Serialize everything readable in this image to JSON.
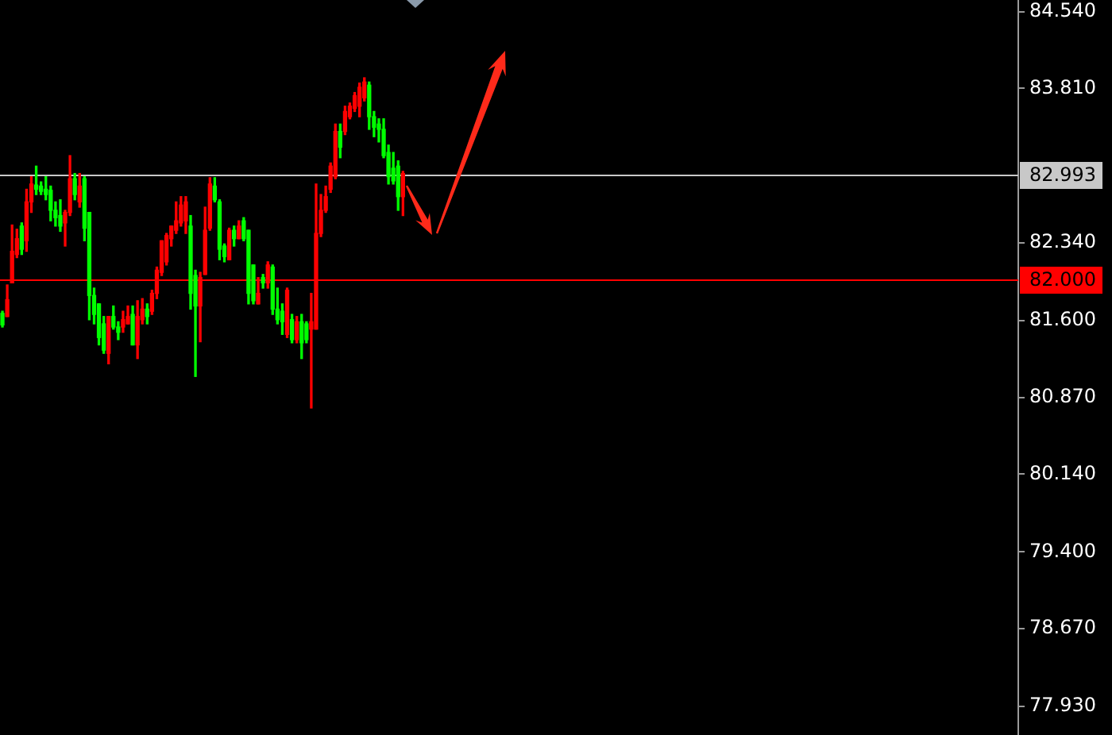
{
  "chart_data": {
    "type": "candlestick",
    "categories": [
      null,
      null,
      null,
      null,
      null,
      null,
      null,
      null,
      null,
      null,
      null,
      null,
      null,
      null,
      null,
      null,
      null,
      null,
      null,
      null,
      null,
      null,
      null,
      null,
      null,
      null,
      null,
      null,
      null,
      null,
      null,
      null,
      null,
      null,
      null,
      null,
      null,
      null,
      null,
      null,
      null,
      null,
      null,
      null,
      null,
      null,
      null,
      null,
      null,
      null,
      null,
      null,
      null,
      null,
      null,
      null,
      null,
      null,
      null,
      null,
      null,
      null,
      null,
      null,
      null,
      null,
      null,
      null,
      null,
      null,
      null,
      null,
      null,
      null,
      null,
      null,
      null,
      null,
      null,
      null,
      null,
      null,
      null,
      null,
      null,
      null,
      null,
      null,
      null,
      null,
      null,
      null,
      null,
      null,
      null,
      null,
      null,
      null,
      null,
      null,
      null,
      null,
      null,
      null,
      null,
      null,
      null,
      null,
      null,
      null,
      null,
      null,
      null,
      null,
      null,
      null,
      null,
      null,
      null,
      null,
      null,
      null,
      null,
      null,
      null,
      null,
      null,
      null,
      null,
      null,
      null,
      null,
      null,
      null,
      null,
      null,
      null,
      null,
      null,
      null,
      null,
      null,
      null,
      null,
      null,
      null,
      null,
      null,
      null,
      null,
      null,
      null,
      null,
      null,
      null,
      null,
      null,
      null,
      null,
      null,
      null,
      null,
      null,
      null,
      null,
      null,
      null,
      null,
      null,
      null,
      null,
      null,
      null,
      null,
      null,
      null,
      null,
      null,
      null,
      null,
      null,
      null,
      null,
      null,
      null,
      null,
      null,
      null,
      null,
      null,
      null,
      null,
      null,
      null,
      null,
      null,
      null,
      null,
      null,
      null,
      null,
      null,
      null,
      null,
      null,
      null,
      null,
      null,
      null,
      null,
      null
    ],
    "ohlc": [
      [
        81.67,
        81.69,
        81.54,
        81.56
      ],
      [
        81.64,
        81.94,
        81.64,
        81.8
      ],
      [
        81.96,
        82.51,
        81.96,
        82.26
      ],
      [
        82.23,
        82.47,
        82.2,
        82.38
      ],
      [
        82.5,
        82.53,
        82.23,
        82.28
      ],
      [
        82.36,
        82.85,
        82.26,
        82.73
      ],
      [
        82.73,
        82.97,
        82.63,
        82.9
      ],
      [
        82.89,
        83.07,
        82.8,
        82.85
      ],
      [
        82.88,
        82.92,
        82.8,
        82.83
      ],
      [
        82.85,
        82.97,
        82.75,
        82.8
      ],
      [
        82.84,
        82.88,
        82.55,
        82.65
      ],
      [
        82.65,
        82.73,
        82.5,
        82.58
      ],
      [
        82.6,
        82.75,
        82.45,
        82.5
      ],
      [
        82.53,
        82.65,
        82.31,
        82.63
      ],
      [
        82.63,
        83.17,
        82.6,
        82.95
      ],
      [
        82.95,
        83,
        82.75,
        82.8
      ],
      [
        82.73,
        83,
        82.68,
        82.88
      ],
      [
        82.95,
        82.97,
        82.36,
        82.48
      ],
      [
        82.63,
        82.63,
        81.61,
        81.84
      ],
      [
        81.84,
        81.91,
        81.57,
        81.66
      ],
      [
        81.76,
        81.76,
        81.37,
        81.44
      ],
      [
        81.57,
        81.64,
        81.29,
        81.32
      ],
      [
        81.29,
        81.64,
        81.19,
        81.64
      ],
      [
        81.64,
        81.74,
        81.52,
        81.54
      ],
      [
        81.54,
        81.59,
        81.42,
        81.49
      ],
      [
        81.54,
        81.69,
        81.49,
        81.61
      ],
      [
        81.57,
        81.74,
        81.57,
        81.64
      ],
      [
        81.66,
        81.74,
        81.37,
        81.37
      ],
      [
        81.37,
        81.79,
        81.24,
        81.64
      ],
      [
        81.61,
        81.81,
        81.57,
        81.71
      ],
      [
        81.71,
        81.76,
        81.57,
        81.64
      ],
      [
        81.69,
        81.89,
        81.66,
        81.86
      ],
      [
        81.86,
        82.11,
        81.81,
        82.08
      ],
      [
        82.06,
        82.36,
        82.03,
        82.36
      ],
      [
        82.16,
        82.43,
        82.13,
        82.41
      ],
      [
        82.38,
        82.5,
        82.31,
        82.5
      ],
      [
        82.46,
        82.73,
        82.43,
        82.55
      ],
      [
        82.53,
        82.78,
        82.5,
        82.7
      ],
      [
        82.55,
        82.78,
        82.43,
        82.73
      ],
      [
        82.5,
        82.6,
        81.71,
        81.86
      ],
      [
        82.03,
        82.08,
        81.07,
        81.74
      ],
      [
        81.74,
        82.06,
        81.4,
        82.01
      ],
      [
        82.04,
        82.68,
        82.04,
        82.46
      ],
      [
        82.48,
        82.96,
        82.46,
        82.9
      ],
      [
        82.88,
        82.96,
        82.73,
        82.75
      ],
      [
        82.73,
        82.75,
        82.18,
        82.28
      ],
      [
        82.31,
        82.33,
        82.16,
        82.21
      ],
      [
        82.18,
        82.48,
        82.18,
        82.46
      ],
      [
        82.46,
        82.5,
        82.31,
        82.38
      ],
      [
        82.38,
        82.55,
        82.38,
        82.5
      ],
      [
        82.55,
        82.58,
        82.36,
        82.38
      ],
      [
        82.46,
        82.46,
        81.76,
        81.86
      ],
      [
        82.13,
        82.13,
        81.76,
        81.79
      ],
      [
        81.76,
        82.01,
        81.76,
        81.86
      ],
      [
        82.01,
        82.04,
        81.91,
        81.96
      ],
      [
        81.96,
        82.16,
        81.91,
        82.13
      ],
      [
        82.11,
        82.13,
        81.66,
        81.71
      ],
      [
        81.71,
        81.91,
        81.57,
        81.61
      ],
      [
        81.69,
        81.76,
        81.47,
        81.59
      ],
      [
        81.47,
        81.91,
        81.44,
        81.89
      ],
      [
        81.61,
        81.66,
        81.39,
        81.42
      ],
      [
        81.42,
        81.64,
        81.39,
        81.59
      ],
      [
        81.59,
        81.66,
        81.24,
        81.39
      ],
      [
        81.57,
        81.59,
        81.39,
        81.42
      ],
      [
        81.52,
        81.86,
        80.77,
        81.59
      ],
      [
        81.52,
        82.9,
        81.52,
        82.43
      ],
      [
        82.43,
        82.8,
        82.4,
        82.65
      ],
      [
        82.65,
        82.88,
        82.63,
        82.78
      ],
      [
        82.85,
        83.1,
        82.82,
        83.07
      ],
      [
        82.97,
        83.47,
        82.95,
        83.4
      ],
      [
        83.4,
        83.47,
        83.15,
        83.25
      ],
      [
        83.4,
        83.64,
        83.37,
        83.59
      ],
      [
        83.54,
        83.67,
        83.52,
        83.64
      ],
      [
        83.62,
        83.77,
        83.59,
        83.74
      ],
      [
        83.64,
        83.86,
        83.54,
        83.82
      ],
      [
        83.72,
        83.91,
        83.69,
        83.87
      ],
      [
        83.84,
        83.87,
        83.42,
        83.54
      ],
      [
        83.54,
        83.59,
        83.35,
        83.44
      ],
      [
        83.47,
        83.52,
        83.3,
        83.42
      ],
      [
        83.42,
        83.52,
        83.15,
        83.17
      ],
      [
        83.2,
        83.27,
        82.9,
        82.97
      ],
      [
        83.05,
        83.2,
        82.9,
        82.93
      ],
      [
        83.07,
        83.12,
        82.65,
        82.78
      ],
      [
        82.78,
        83.02,
        82.6,
        83
      ],
      null,
      null,
      null,
      null,
      null,
      null,
      null,
      null,
      null,
      null,
      null,
      null,
      null,
      null,
      null,
      null,
      null,
      null,
      null,
      null,
      null,
      null,
      null,
      null,
      null,
      null,
      null,
      null,
      null,
      null,
      null,
      null,
      null,
      null,
      null,
      null,
      null,
      null,
      null,
      null,
      null,
      null,
      null,
      null,
      null,
      null,
      null,
      null,
      null,
      null,
      null,
      null,
      null,
      null,
      null,
      null,
      null,
      null,
      null,
      null,
      null,
      null,
      null,
      null,
      null,
      null,
      null,
      null,
      null,
      null,
      null,
      null,
      null,
      null,
      null,
      null,
      null,
      null,
      null,
      null,
      null,
      null,
      null,
      null,
      null,
      null,
      null,
      null,
      null,
      null,
      null,
      null,
      null,
      null,
      null,
      null,
      null,
      null,
      null,
      null,
      null,
      null,
      null,
      null,
      null,
      null,
      null,
      null,
      null,
      null,
      null,
      null,
      null,
      null,
      null,
      null,
      null,
      null,
      null,
      null,
      null,
      null,
      null,
      null,
      null,
      null,
      null
    ],
    "colors": [
      "#00ff00",
      "#ff0000",
      "#ff0000",
      "#ff0000",
      "#00ff00",
      "#ff0000",
      "#ff0000",
      "#00ff00",
      "#00ff00",
      "#00ff00",
      "#00ff00",
      "#00ff00",
      "#00ff00",
      "#ff0000",
      "#ff0000",
      "#00ff00",
      "#ff0000",
      "#00ff00",
      "#00ff00",
      "#00ff00",
      "#00ff00",
      "#00ff00",
      "#ff0000",
      "#00ff00",
      "#00ff00",
      "#ff0000",
      "#ff0000",
      "#00ff00",
      "#ff0000",
      "#ff0000",
      "#00ff00",
      "#ff0000",
      "#ff0000",
      "#ff0000",
      "#ff0000",
      "#ff0000",
      "#ff0000",
      "#ff0000",
      "#ff0000",
      "#00ff00",
      "#00ff00",
      "#ff0000",
      "#ff0000",
      "#ff0000",
      "#00ff00",
      "#00ff00",
      "#00ff00",
      "#ff0000",
      "#00ff00",
      "#ff0000",
      "#00ff00",
      "#00ff00",
      "#00ff00",
      "#ff0000",
      "#00ff00",
      "#ff0000",
      "#00ff00",
      "#00ff00",
      "#00ff00",
      "#ff0000",
      "#00ff00",
      "#ff0000",
      "#00ff00",
      "#00ff00",
      "#ff0000",
      "#ff0000",
      "#ff0000",
      "#ff0000",
      "#ff0000",
      "#ff0000",
      "#00ff00",
      "#ff0000",
      "#ff0000",
      "#ff0000",
      "#ff0000",
      "#ff0000",
      "#00ff00",
      "#00ff00",
      "#00ff00",
      "#00ff00",
      "#00ff00",
      "#00ff00",
      "#00ff00",
      "#ff0000",
      null,
      null,
      null,
      null,
      null,
      null,
      null,
      null,
      null,
      null,
      null,
      null,
      null,
      null,
      null,
      null,
      null,
      null,
      null,
      null,
      null,
      null,
      null,
      null,
      null,
      null,
      null,
      null,
      null,
      null,
      null,
      null,
      null,
      null,
      null,
      null,
      null,
      null,
      null,
      null,
      null,
      null,
      null,
      null,
      null,
      null,
      null,
      null,
      null,
      null,
      null,
      null,
      null,
      null,
      null,
      null,
      null,
      null,
      null,
      null,
      null,
      null,
      null,
      null,
      null,
      null,
      null,
      null,
      null,
      null,
      null,
      null,
      null,
      null,
      null,
      null,
      null,
      null,
      null,
      null,
      null,
      null,
      null,
      null,
      null,
      null,
      null,
      null,
      null,
      null,
      null,
      null,
      null,
      null,
      null,
      null,
      null,
      null,
      null,
      null,
      null,
      null,
      null,
      null,
      null,
      null,
      null,
      null,
      null,
      null,
      null,
      null,
      null,
      null,
      null,
      null,
      null,
      null,
      null,
      null,
      null,
      null,
      null,
      null,
      null,
      null,
      null
    ],
    "ylim": [
      77.66,
      84.65
    ],
    "yticks": [
      {
        "value": 84.54,
        "label": "84.540"
      },
      {
        "value": 83.81,
        "label": "83.810"
      },
      {
        "value": 82.34,
        "label": "82.340"
      },
      {
        "value": 81.6,
        "label": "81.600"
      },
      {
        "value": 80.87,
        "label": "80.870"
      },
      {
        "value": 80.14,
        "label": "80.140"
      },
      {
        "value": 79.4,
        "label": "79.400"
      },
      {
        "value": 78.67,
        "label": "78.670"
      },
      {
        "value": 77.93,
        "label": "77.930"
      }
    ],
    "ref_lines": [
      {
        "axis": "y",
        "value": 82.993,
        "label": "82.993",
        "color": "#c8c8c8"
      },
      {
        "axis": "y",
        "value": 82,
        "label": "82.000",
        "color": "#ff0000"
      }
    ],
    "grid": false,
    "legend": false,
    "tick_labels": "y"
  }
}
